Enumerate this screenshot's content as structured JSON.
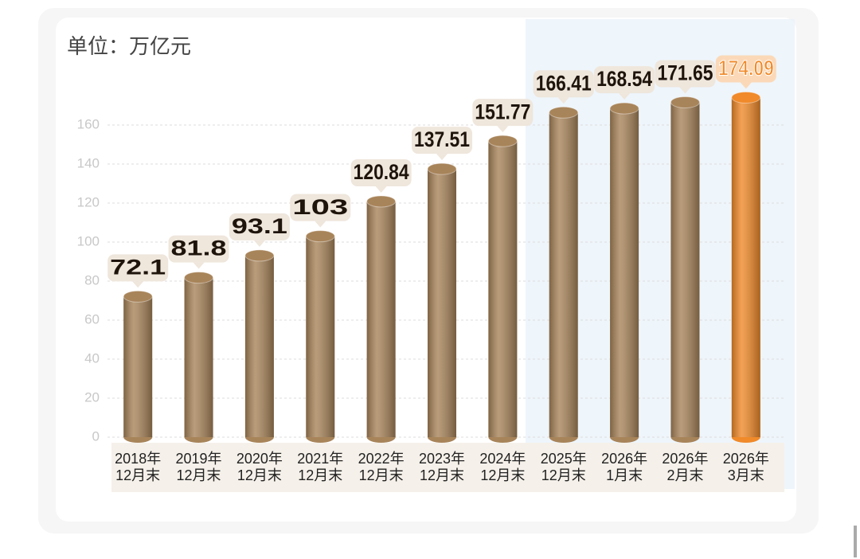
{
  "chart_data": {
    "type": "bar",
    "unit": "单位：万亿元",
    "categories": [
      [
        "2018年",
        "12月末"
      ],
      [
        "2019年",
        "12月末"
      ],
      [
        "2020年",
        "12月末"
      ],
      [
        "2021年",
        "12月末"
      ],
      [
        "2022年",
        "12月末"
      ],
      [
        "2023年",
        "12月末"
      ],
      [
        "2024年",
        "12月末"
      ],
      [
        "2025年",
        "12月末"
      ],
      [
        "2026年",
        "1月末"
      ],
      [
        "2026年",
        "2月末"
      ],
      [
        "2026年",
        "3月末"
      ]
    ],
    "values": [
      72.1,
      81.8,
      93.1,
      103,
      120.84,
      137.51,
      151.77,
      166.41,
      168.54,
      171.65,
      174.09
    ],
    "colors": [
      "#a8845a",
      "#a8845a",
      "#a8845a",
      "#a8845a",
      "#a8845a",
      "#a8845a",
      "#a8845a",
      "#a8845a",
      "#a8845a",
      "#a8845a",
      "#f08a2a"
    ],
    "ylim": [
      0,
      180
    ],
    "yticks": [
      0,
      20,
      40,
      60,
      80,
      100,
      120,
      140,
      160
    ],
    "grid": true
  }
}
